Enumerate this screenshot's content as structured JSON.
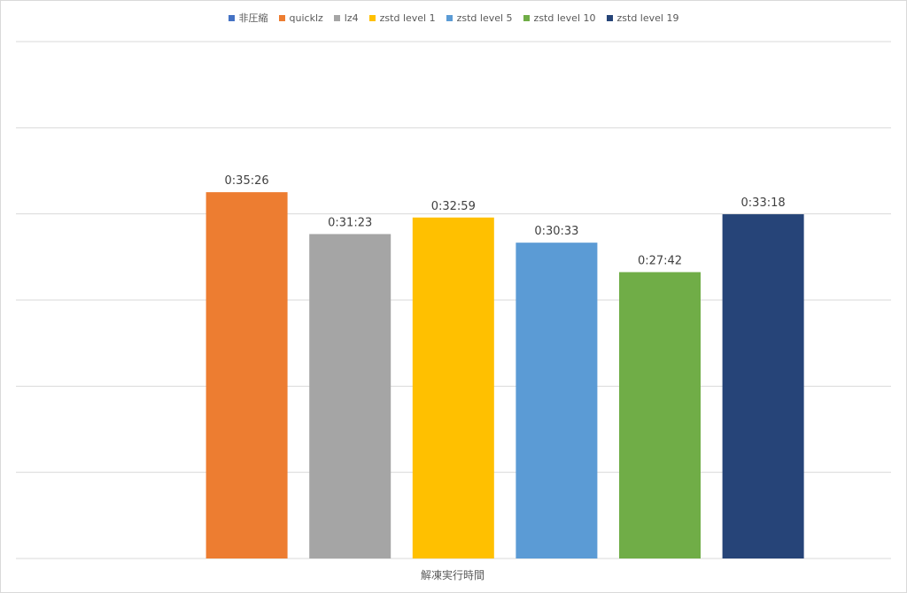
{
  "chart_data": {
    "type": "bar",
    "title": "",
    "xlabel": "解凍実行時間",
    "ylabel": "",
    "ylim": [
      0,
      3000
    ],
    "grid": true,
    "legend_position": "top",
    "category": "解凍実行時間",
    "series": [
      {
        "name": "非圧縮",
        "value_seconds": 0,
        "label": "",
        "color": "#4472C4"
      },
      {
        "name": "quicklz",
        "value_seconds": 2126,
        "label": "0:35:26",
        "color": "#ED7D31"
      },
      {
        "name": "lz4",
        "value_seconds": 1883,
        "label": "0:31:23",
        "color": "#A5A5A5"
      },
      {
        "name": "zstd level 1",
        "value_seconds": 1979,
        "label": "0:32:59",
        "color": "#FFC000"
      },
      {
        "name": "zstd level 5",
        "value_seconds": 1833,
        "label": "0:30:33",
        "color": "#5B9BD5"
      },
      {
        "name": "zstd level 10",
        "value_seconds": 1662,
        "label": "0:27:42",
        "color": "#70AD47"
      },
      {
        "name": "zstd level 19",
        "value_seconds": 1998,
        "label": "0:33:18",
        "color": "#264478"
      }
    ]
  }
}
